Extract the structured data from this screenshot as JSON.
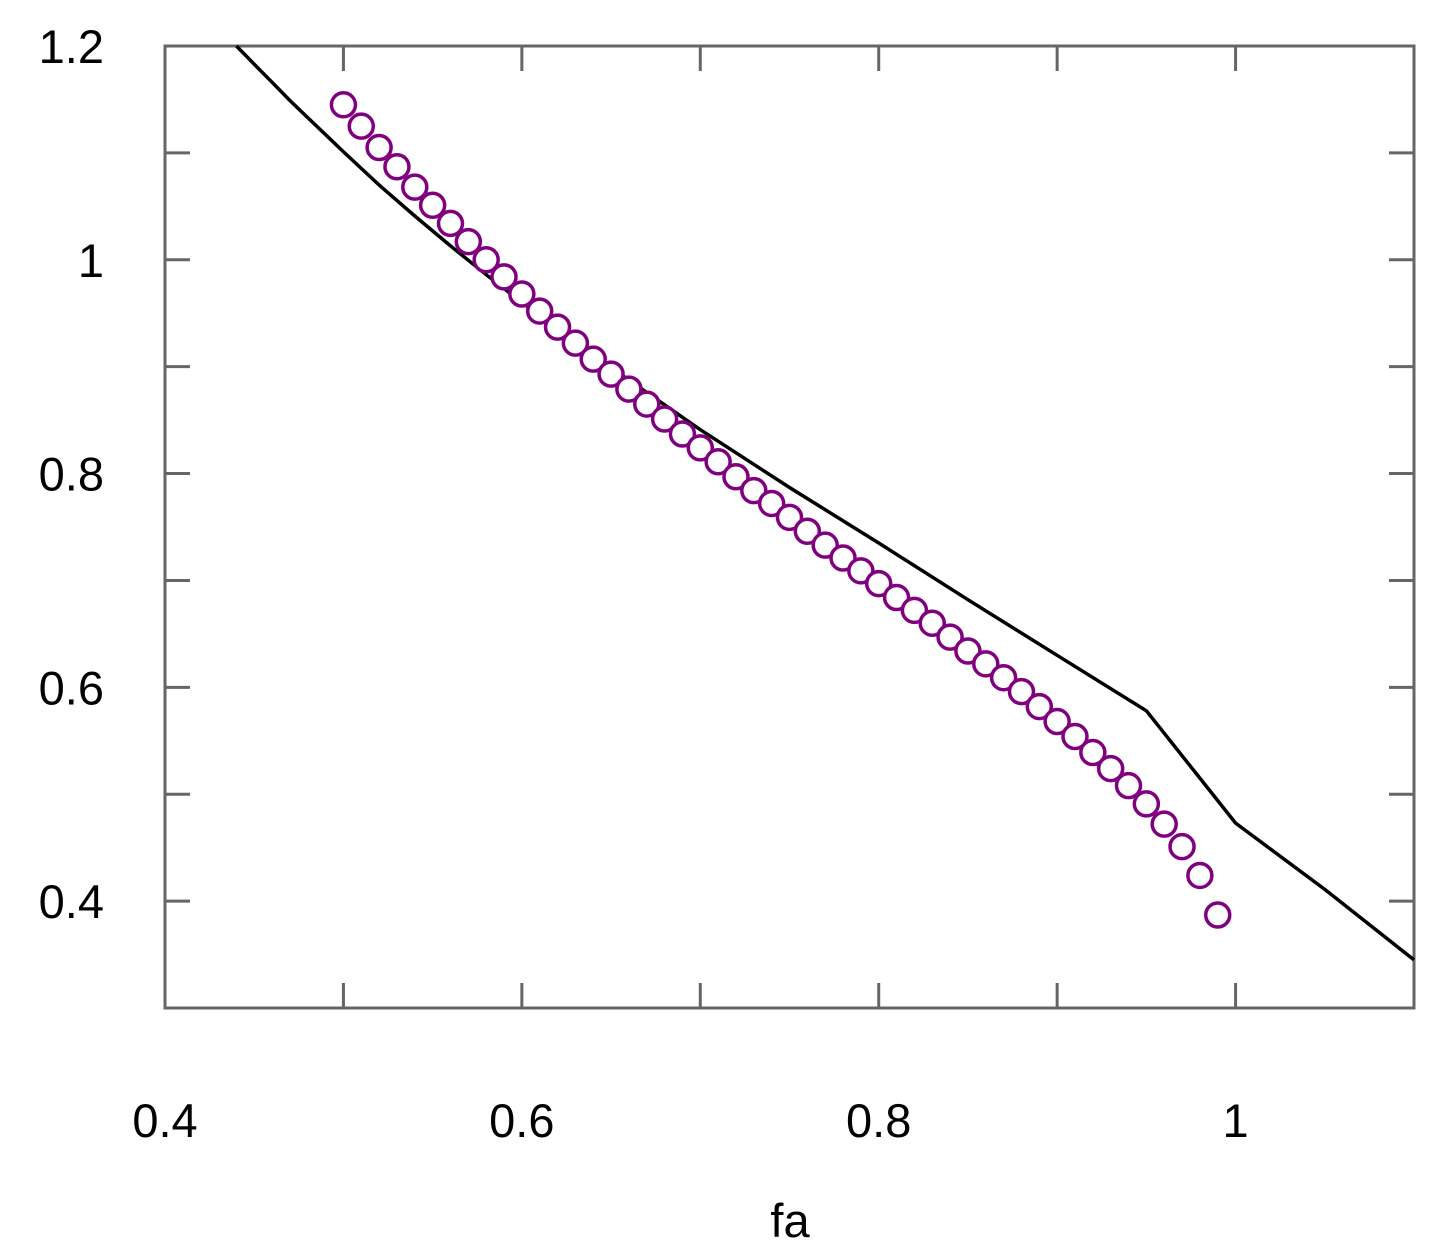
{
  "chart_data": {
    "type": "scatter",
    "title": "",
    "xlabel": "fa",
    "ylabel": "",
    "xlim": [
      0.4,
      1.1
    ],
    "ylim": [
      0.3,
      1.2
    ],
    "x_ticks": [
      {
        "value": 0.4,
        "label": "0.4"
      },
      {
        "value": 0.6,
        "label": "0.6"
      },
      {
        "value": 0.8,
        "label": "0.8"
      },
      {
        "value": 1.0,
        "label": "1"
      }
    ],
    "x_minor_ticks": [
      0.5,
      0.7,
      0.9
    ],
    "y_ticks": [
      {
        "value": 0.4,
        "label": "0.4"
      },
      {
        "value": 0.6,
        "label": "0.6"
      },
      {
        "value": 0.8,
        "label": "0.8"
      },
      {
        "value": 1.0,
        "label": "1"
      },
      {
        "value": 1.2,
        "label": "1.2"
      }
    ],
    "y_minor_ticks": [
      0.5,
      0.7,
      0.9,
      1.1
    ],
    "grid": false,
    "legend": "none",
    "colors": {
      "axes": "#666666",
      "markers": "#800080",
      "curve": "#000000"
    },
    "series": [
      {
        "type": "line",
        "x": [
          0.44,
          0.45,
          0.46,
          0.47,
          0.48,
          0.49,
          0.5,
          0.52,
          0.54,
          0.56,
          0.58,
          0.6,
          0.65,
          0.7,
          0.75,
          0.8,
          0.85,
          0.9,
          0.95,
          1.0,
          1.05,
          1.1
        ],
        "y": [
          1.2,
          1.183,
          1.166,
          1.149,
          1.133,
          1.117,
          1.101,
          1.07,
          1.041,
          1.013,
          0.986,
          0.96,
          0.899,
          0.841,
          0.787,
          0.735,
          0.682,
          0.63,
          0.578,
          0.473,
          0.411,
          0.345
        ]
      },
      {
        "type": "scatter",
        "marker": "open-circle",
        "x": [
          0.5,
          0.51,
          0.52,
          0.53,
          0.54,
          0.55,
          0.56,
          0.57,
          0.58,
          0.59,
          0.6,
          0.61,
          0.62,
          0.63,
          0.64,
          0.65,
          0.66,
          0.67,
          0.68,
          0.69,
          0.7,
          0.71,
          0.72,
          0.73,
          0.74,
          0.75,
          0.76,
          0.77,
          0.78,
          0.79,
          0.8,
          0.81,
          0.82,
          0.83,
          0.84,
          0.85,
          0.86,
          0.87,
          0.88,
          0.89,
          0.9,
          0.91,
          0.92,
          0.93,
          0.94,
          0.95,
          0.96,
          0.97,
          0.98,
          0.99
        ],
        "y": [
          1.145,
          1.125,
          1.105,
          1.087,
          1.068,
          1.051,
          1.034,
          1.017,
          1.0,
          0.984,
          0.968,
          0.952,
          0.937,
          0.922,
          0.907,
          0.893,
          0.879,
          0.865,
          0.851,
          0.837,
          0.824,
          0.811,
          0.797,
          0.784,
          0.772,
          0.759,
          0.746,
          0.733,
          0.721,
          0.709,
          0.697,
          0.684,
          0.672,
          0.66,
          0.647,
          0.634,
          0.622,
          0.609,
          0.596,
          0.582,
          0.568,
          0.554,
          0.539,
          0.524,
          0.508,
          0.491,
          0.472,
          0.451,
          0.424,
          0.387
        ]
      }
    ]
  }
}
